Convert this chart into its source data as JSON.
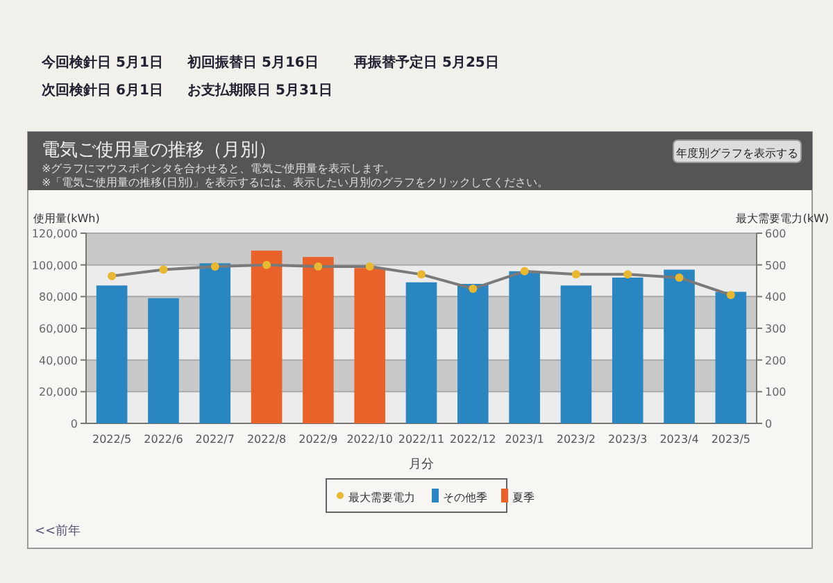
{
  "chart_data": {
    "type": "bar",
    "title": "電気ご使用量の推移（月別）",
    "subtitle": "※グラフにマウスポインタを合わせると、電気ご使用量を表示します。\n※「電気ご使用量の推移(日別)」を表示するには、表示したい月別のグラフをクリックしてください。",
    "annotations": [
      "今回検針日 5月1日",
      "初回振替日 5月16日",
      "再振替予定日 5月25日",
      "次回検針日 6月1日",
      "お支払期限日 5月31日",
      "年度別グラフを表示する",
      "<<前年"
    ],
    "xlabel": "月分",
    "ylabel": "使用量(kWh)",
    "y2label": "最大需要電力(kW)",
    "categories": [
      "2022/5",
      "2022/6",
      "2022/7",
      "2022/8",
      "2022/9",
      "2022/10",
      "2022/11",
      "2022/12",
      "2023/1",
      "2023/2",
      "2023/3",
      "2023/4",
      "2023/5"
    ],
    "series": [
      {
        "name": "最大需要電力",
        "type": "line",
        "axis": "y2",
        "color": "#e8b830",
        "marker": "circle",
        "values": [
          465,
          485,
          495,
          500,
          495,
          495,
          470,
          425,
          480,
          470,
          470,
          460,
          405
        ]
      },
      {
        "name": "その他季",
        "color": "#2a86c0",
        "values": [
          87000,
          79000,
          101000,
          null,
          null,
          null,
          89000,
          88000,
          96000,
          87000,
          92000,
          97000,
          83000
        ]
      },
      {
        "name": "夏季",
        "color": "#e8622a",
        "values": [
          null,
          null,
          null,
          109000,
          105000,
          98000,
          null,
          null,
          null,
          null,
          null,
          null,
          null
        ]
      }
    ],
    "ylim": [
      0,
      120000
    ],
    "yticks": [
      0,
      {
        "value": 20000,
        "label": "20,000"
      },
      {
        "value": 40000,
        "label": "40,000"
      },
      {
        "value": 60000,
        "label": "60,000"
      },
      {
        "value": 80000,
        "label": "80,000"
      },
      {
        "value": 100000,
        "label": "100,000"
      },
      {
        "value": 120000,
        "label": "120,000"
      }
    ],
    "y2lim": [
      0,
      600
    ],
    "y2ticks": [
      0,
      100,
      200,
      300,
      400,
      500,
      600
    ],
    "grid": "y",
    "legend": "bottom"
  }
}
